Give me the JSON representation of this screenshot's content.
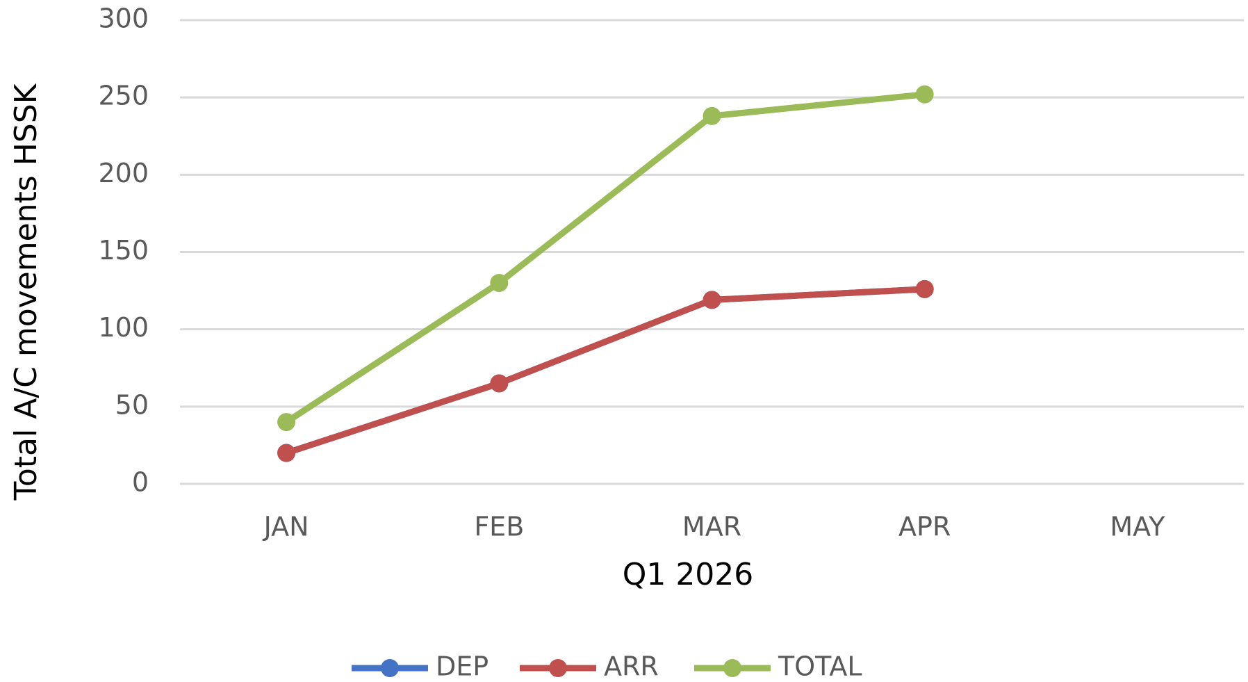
{
  "chart_data": {
    "type": "line",
    "categories": [
      "JAN",
      "FEB",
      "MAR",
      "APR",
      "MAY"
    ],
    "series": [
      {
        "name": "DEP",
        "color": "#4472c4",
        "values": [
          20,
          65,
          119,
          126,
          null
        ]
      },
      {
        "name": "ARR",
        "color": "#c0504d",
        "values": [
          20,
          65,
          119,
          126,
          null
        ]
      },
      {
        "name": "TOTAL",
        "color": "#9bbb59",
        "values": [
          40,
          130,
          238,
          252,
          null
        ]
      }
    ],
    "xlabel": "Q1 2026",
    "ylabel": "Total A/C movements HSSK",
    "ylim": [
      0,
      300
    ],
    "yticks": [
      0,
      50,
      100,
      150,
      200,
      250,
      300
    ],
    "grid": true,
    "legend": "bottom"
  }
}
